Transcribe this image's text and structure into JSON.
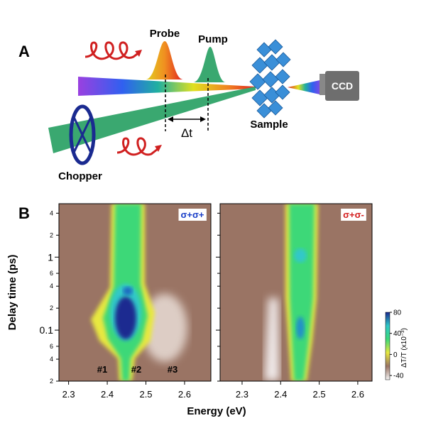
{
  "panel_a": {
    "label": "A",
    "probe": "Probe",
    "pump": "Pump",
    "delay": "Δt",
    "sample": "Sample",
    "detector": "CCD",
    "chopper": "Chopper"
  },
  "panel_b": {
    "label": "B",
    "ylabel": "Delay time (ps)",
    "xlabel": "Energy (eV)",
    "log_y": true,
    "ylim": [
      0.02,
      5.4
    ],
    "yticks": [
      4,
      2,
      1,
      {
        "value": 0.6,
        "label": "6"
      },
      {
        "value": 0.4,
        "label": "4"
      },
      {
        "value": 0.2,
        "label": "2"
      },
      0.1,
      {
        "value": 0.06,
        "label": "6"
      },
      {
        "value": 0.04,
        "label": "4"
      },
      {
        "value": 0.02,
        "label": "2"
      }
    ],
    "xticks": [
      2.3,
      2.4,
      2.5,
      2.6
    ],
    "panels": [
      {
        "label": "σ+σ+",
        "color": "#1a3fc8",
        "xlim": [
          2.275,
          2.668
        ]
      },
      {
        "label": "σ+σ-",
        "color": "#d42020",
        "xlim": [
          2.243,
          2.637
        ]
      }
    ],
    "annotations": [
      "#1",
      "#2",
      "#3"
    ],
    "colorbar": {
      "label": "ΔT/T (x10⁻³)",
      "lim": [
        -48,
        80
      ],
      "ticks": [
        80,
        40,
        0,
        -40
      ],
      "colors": [
        "#f4f4f4",
        "#9a7464",
        "#e8e840",
        "#3cd878",
        "#30c8c8",
        "#1a2a90"
      ]
    }
  }
}
